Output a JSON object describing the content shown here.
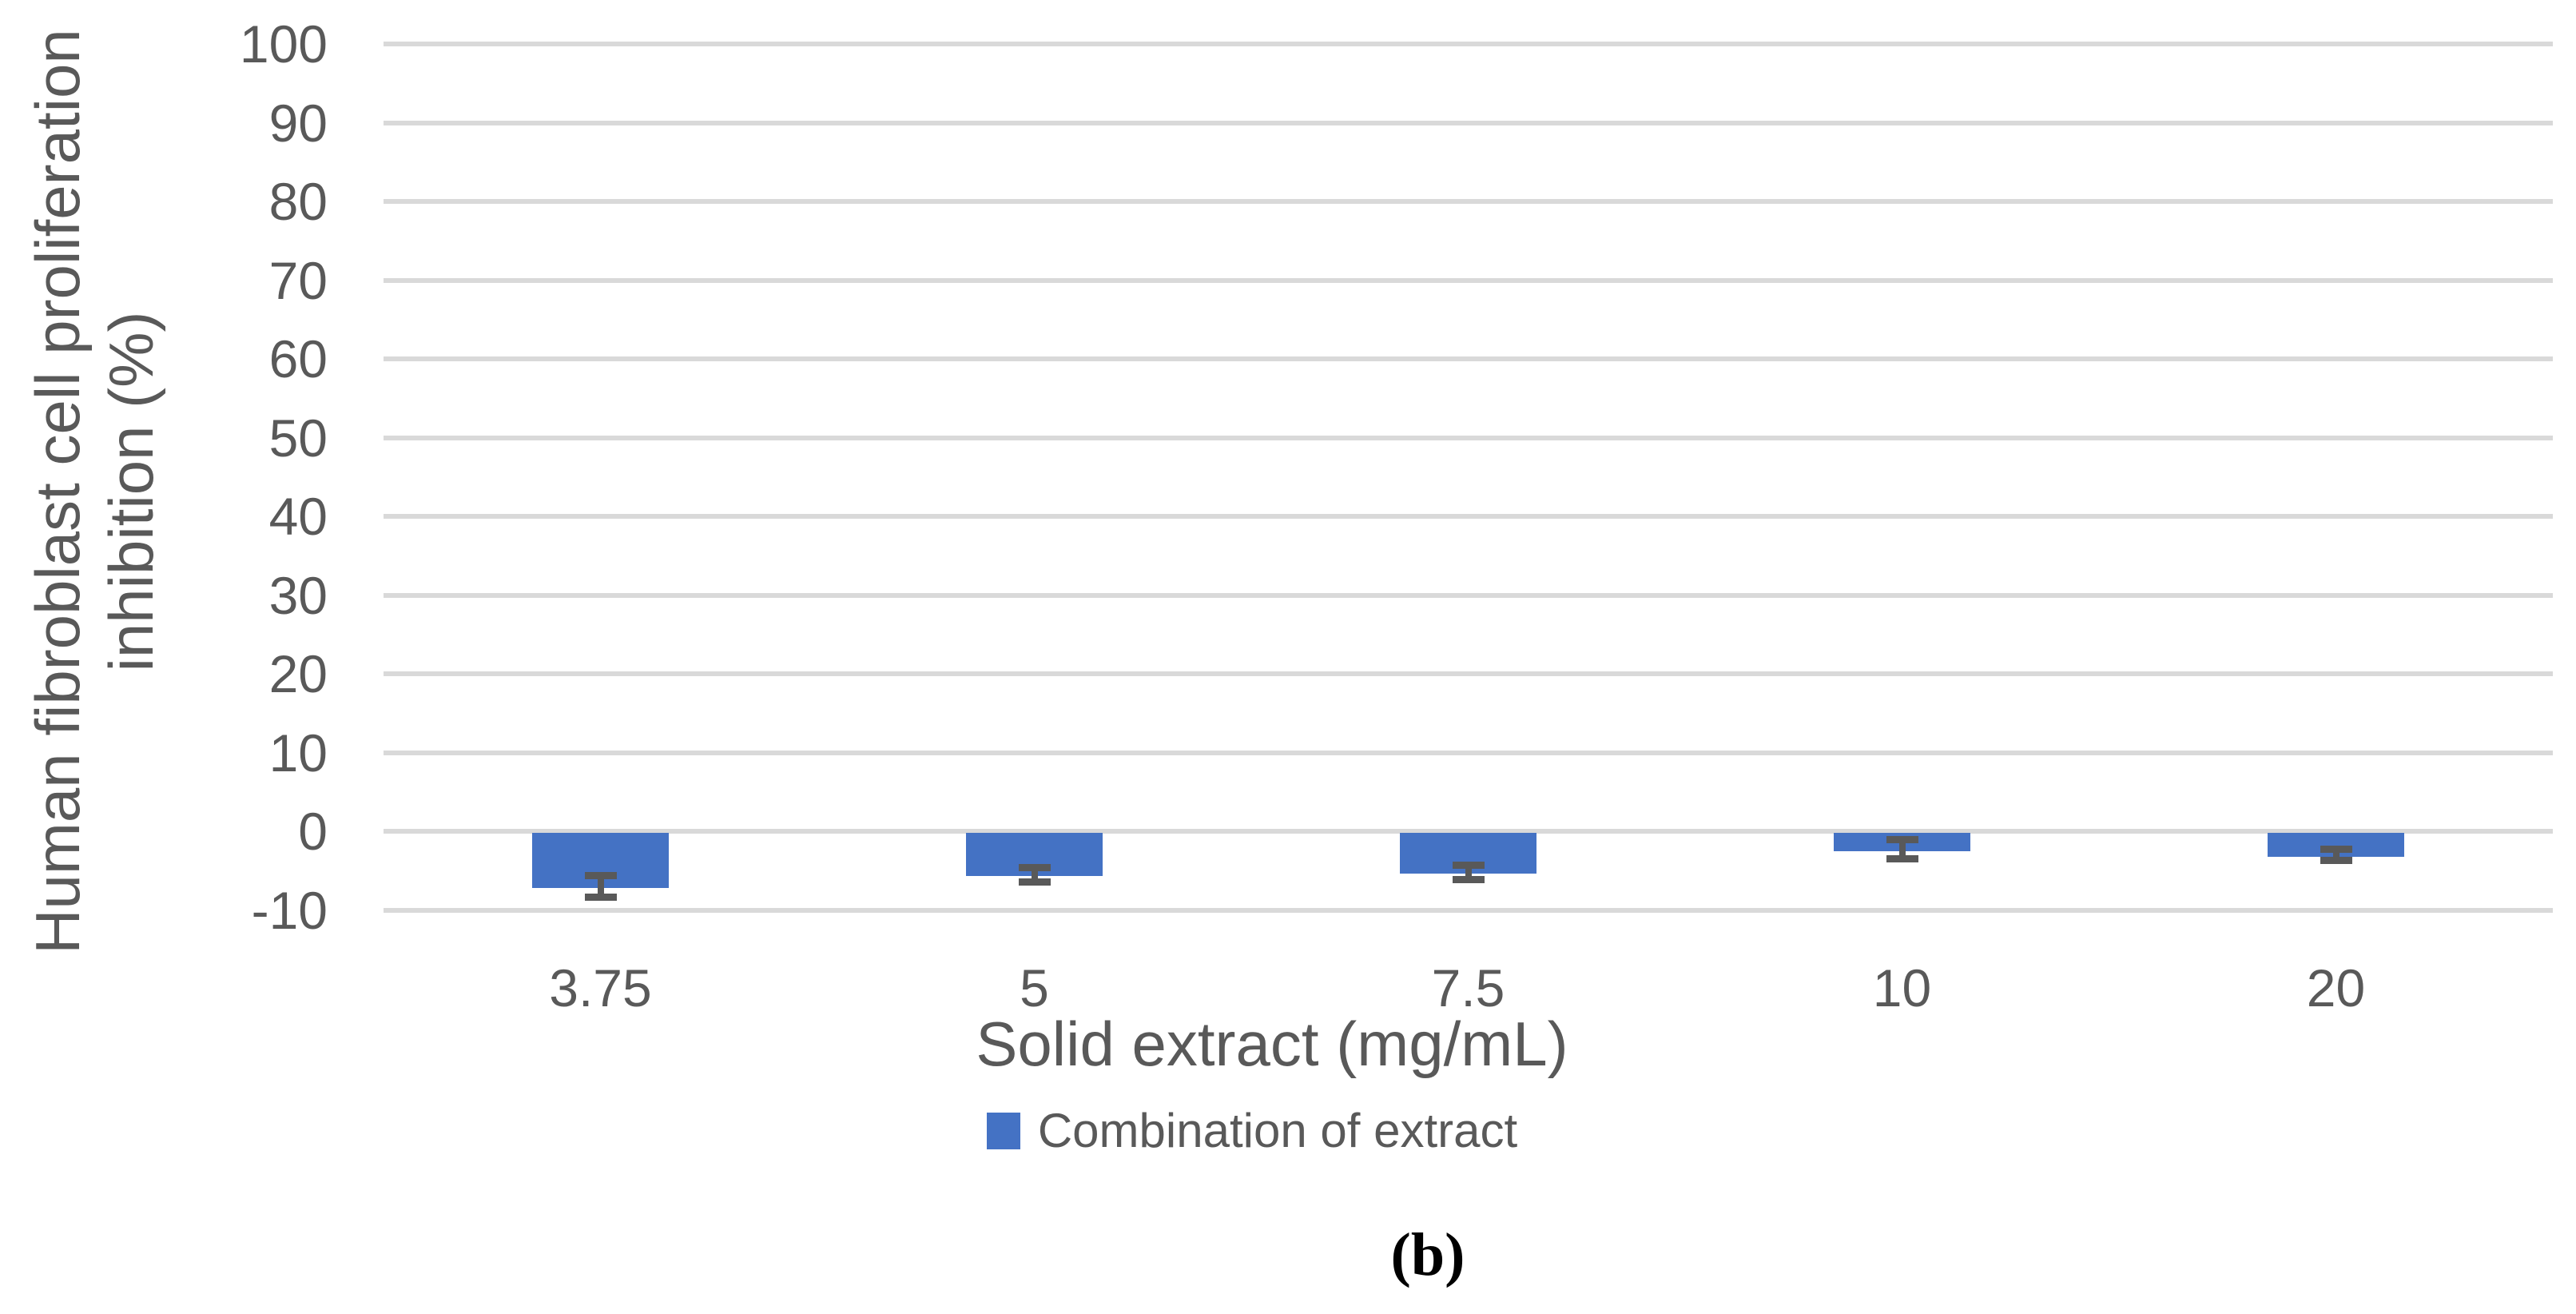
{
  "figure": {
    "caption": "(b)"
  },
  "chart_data": {
    "type": "bar",
    "title": "",
    "xlabel": "Solid extract (mg/mL)",
    "ylabel": "Human fibroblast cell proliferation inhibition (%)",
    "ylabel_lines": [
      "Human fibroblast cell proliferation",
      "inhibition (%)"
    ],
    "categories": [
      "3.75",
      "5",
      "7.5",
      "10",
      "20"
    ],
    "series": [
      {
        "name": "Combination of extract",
        "values": [
          -7.0,
          -5.5,
          -5.2,
          -2.3,
          -3.0
        ],
        "errors": [
          1.4,
          0.9,
          0.9,
          1.2,
          0.7
        ],
        "color": "#4472C4"
      }
    ],
    "ylim": [
      -10,
      100
    ],
    "yticks": [
      100,
      90,
      80,
      70,
      60,
      50,
      40,
      30,
      20,
      10,
      0,
      -10
    ],
    "grid": true,
    "legend_position": "bottom",
    "colors": {
      "bar": "#4472C4",
      "error_bar": "#595959",
      "gridline": "#D9D9D9",
      "text": "#595959",
      "caption": "#000000"
    }
  }
}
